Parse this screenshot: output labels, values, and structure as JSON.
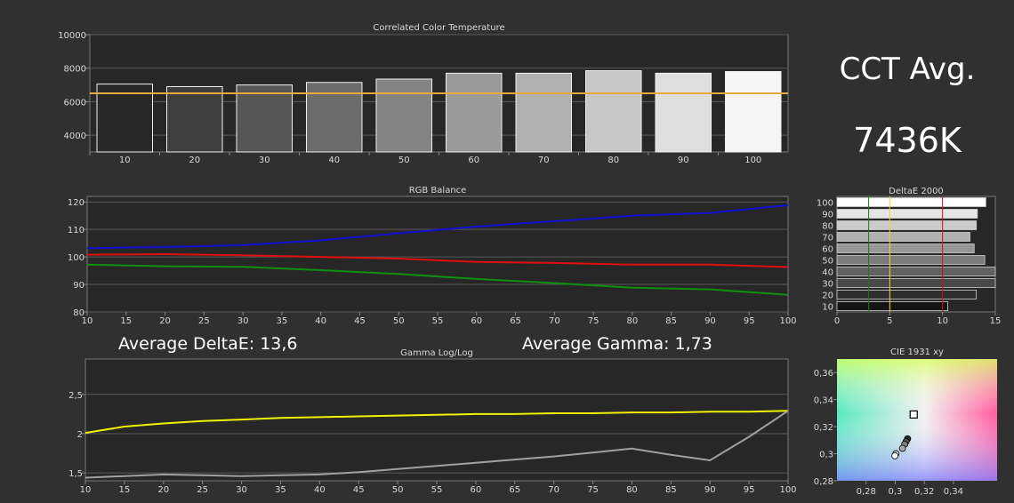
{
  "summary": {
    "cct_title": "CCT Avg.",
    "cct_value": "7436K",
    "avg_delta_label": "Average DeltaE: 13,6",
    "avg_gamma_label": "Average Gamma: 1,73"
  },
  "colors": {
    "background": "#303030",
    "plot_bg": "#272727",
    "grid": "#5a5a5a",
    "text": "#d8d8d8",
    "cct_target": "#e8a840",
    "red": "#e01010",
    "green": "#109010",
    "blue": "#1010d0",
    "gamma_measured": "#f0f000",
    "gamma_reference": "#a0a0a0"
  },
  "chart_data": [
    {
      "id": "cct",
      "type": "bar",
      "title": "Correlated Color Temperature",
      "categories": [
        "10",
        "20",
        "30",
        "40",
        "50",
        "60",
        "70",
        "80",
        "90",
        "100"
      ],
      "values": [
        7050,
        6900,
        7000,
        7150,
        7350,
        7700,
        7700,
        7850,
        7700,
        7800
      ],
      "reference": 6500,
      "ylim": [
        3000,
        10000
      ],
      "yticks": [
        4000,
        6000,
        8000,
        10000
      ],
      "grid": true
    },
    {
      "id": "rgb",
      "type": "line",
      "title": "RGB Balance",
      "x": [
        10,
        20,
        30,
        40,
        50,
        60,
        70,
        80,
        90,
        100
      ],
      "series": [
        {
          "color": "red",
          "values": [
            100.8,
            101,
            100.6,
            100,
            99.4,
            98.2,
            97.8,
            97.2,
            97.2,
            96.3
          ]
        },
        {
          "color": "green",
          "values": [
            97.2,
            96.6,
            96.4,
            95.2,
            93.8,
            92,
            90.5,
            88.8,
            88.2,
            86.2
          ]
        },
        {
          "color": "blue",
          "values": [
            103.2,
            103.6,
            104.3,
            106,
            108.6,
            111,
            113,
            115,
            116,
            118.8
          ]
        }
      ],
      "xlim": [
        10,
        100
      ],
      "ylim": [
        80,
        122
      ],
      "xticks": [
        10,
        15,
        20,
        25,
        30,
        35,
        40,
        45,
        50,
        55,
        60,
        65,
        70,
        75,
        80,
        85,
        90,
        95,
        100
      ],
      "yticks": [
        80,
        90,
        100,
        110,
        120
      ],
      "grid": true
    },
    {
      "id": "deltae",
      "type": "bar",
      "orientation": "horizontal",
      "title": "DeltaE 2000",
      "categories": [
        "10",
        "20",
        "30",
        "40",
        "50",
        "60",
        "70",
        "80",
        "90",
        "100"
      ],
      "values": [
        10.5,
        13.2,
        15,
        15,
        14,
        13,
        12.6,
        13.2,
        13.3,
        14.1
      ],
      "thresholds": [
        {
          "value": 3,
          "color": "#108010"
        },
        {
          "value": 5,
          "color": "#e0e020"
        },
        {
          "value": 10,
          "color": "#d01010"
        }
      ],
      "xlim": [
        0,
        15
      ],
      "xticks": [
        0,
        5,
        10,
        15
      ],
      "ytick_labels": [
        "100",
        "90",
        "80",
        "70",
        "60",
        "50",
        "40",
        "30",
        "20",
        "10"
      ]
    },
    {
      "id": "gamma",
      "type": "line",
      "title": "Gamma Log/Log",
      "x": [
        10,
        15,
        20,
        25,
        30,
        35,
        40,
        45,
        50,
        55,
        60,
        65,
        70,
        75,
        80,
        85,
        90,
        95,
        100
      ],
      "series": [
        {
          "color": "gamma_measured",
          "values": [
            2.01,
            2.09,
            2.13,
            2.16,
            2.18,
            2.2,
            2.21,
            2.22,
            2.23,
            2.24,
            2.25,
            2.25,
            2.26,
            2.26,
            2.27,
            2.27,
            2.28,
            2.28,
            2.29
          ]
        },
        {
          "color": "gamma_reference",
          "values": [
            1.44,
            1.46,
            1.48,
            1.47,
            1.46,
            1.47,
            1.48,
            1.51,
            1.55,
            1.59,
            1.63,
            1.67,
            1.71,
            1.76,
            1.81,
            1.73,
            1.66,
            1.96,
            2.29
          ]
        }
      ],
      "xlim": [
        10,
        100
      ],
      "ylim": [
        1.4,
        2.95
      ],
      "xticks": [
        10,
        15,
        20,
        25,
        30,
        35,
        40,
        45,
        50,
        55,
        60,
        65,
        70,
        75,
        80,
        85,
        90,
        95,
        100
      ],
      "yticks": [
        1.5,
        2,
        2.5
      ],
      "ytick_labels": [
        "1,5",
        "2",
        "2,5"
      ],
      "grid": true
    },
    {
      "id": "cie",
      "type": "scatter",
      "title": "CIE 1931 xy",
      "target": {
        "x": 0.3127,
        "y": 0.329
      },
      "points": [
        {
          "x": 0.3085,
          "y": 0.311
        },
        {
          "x": 0.3075,
          "y": 0.309
        },
        {
          "x": 0.3065,
          "y": 0.307
        },
        {
          "x": 0.305,
          "y": 0.304
        },
        {
          "x": 0.3005,
          "y": 0.3
        },
        {
          "x": 0.2998,
          "y": 0.2985
        }
      ],
      "xlim": [
        0.26,
        0.37
      ],
      "ylim": [
        0.28,
        0.37
      ],
      "xticks": [
        0.28,
        0.3,
        0.32,
        0.34
      ],
      "xtick_labels": [
        "0,28",
        "0,3",
        "0,32",
        "0,34"
      ],
      "yticks": [
        0.28,
        0.3,
        0.32,
        0.34,
        0.36
      ],
      "ytick_labels": [
        "0,28",
        "0,3",
        "0,32",
        "0,34",
        "0,36"
      ]
    }
  ]
}
